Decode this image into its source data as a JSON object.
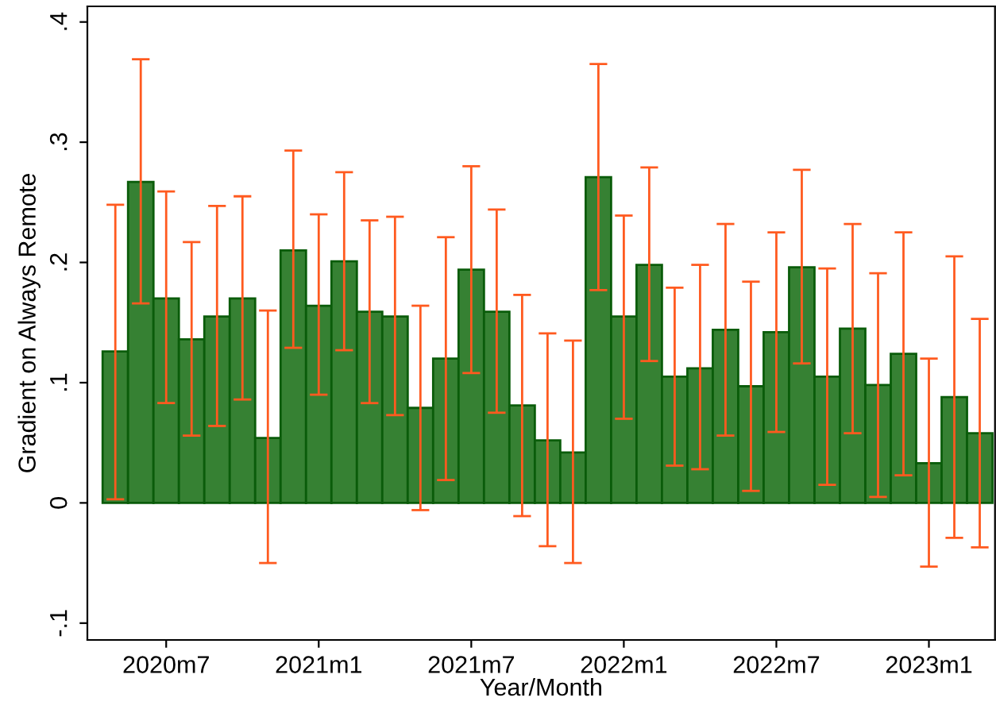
{
  "chart_data": {
    "type": "bar",
    "xlabel": "Year/Month",
    "ylabel": "Gradient on Always Remote",
    "categories": [
      null,
      null,
      "2020m7",
      null,
      null,
      null,
      null,
      null,
      "2021m1",
      null,
      null,
      null,
      null,
      null,
      "2021m7",
      null,
      null,
      null,
      null,
      null,
      "2022m1",
      null,
      null,
      null,
      null,
      null,
      "2022m7",
      null,
      null,
      null,
      null,
      null,
      "2023m1",
      null,
      null
    ],
    "values": [
      0.126,
      0.267,
      0.17,
      0.136,
      0.155,
      0.17,
      0.054,
      0.21,
      0.164,
      0.201,
      0.159,
      0.155,
      0.079,
      0.12,
      0.194,
      0.159,
      0.081,
      0.052,
      0.042,
      0.271,
      0.155,
      0.198,
      0.105,
      0.112,
      0.144,
      0.097,
      0.142,
      0.196,
      0.105,
      0.145,
      0.098,
      0.124,
      0.033,
      0.088,
      0.058
    ],
    "errors": [
      [
        0.003,
        0.248
      ],
      [
        0.166,
        0.369
      ],
      [
        0.083,
        0.259
      ],
      [
        0.056,
        0.217
      ],
      [
        0.064,
        0.247
      ],
      [
        0.086,
        0.255
      ],
      [
        -0.05,
        0.16
      ],
      [
        0.129,
        0.293
      ],
      [
        0.09,
        0.24
      ],
      [
        0.127,
        0.275
      ],
      [
        0.083,
        0.235
      ],
      [
        0.073,
        0.238
      ],
      [
        -0.006,
        0.164
      ],
      [
        0.019,
        0.221
      ],
      [
        0.108,
        0.28
      ],
      [
        0.075,
        0.244
      ],
      [
        -0.011,
        0.173
      ],
      [
        -0.036,
        0.141
      ],
      [
        -0.05,
        0.135
      ],
      [
        0.177,
        0.365
      ],
      [
        0.07,
        0.239
      ],
      [
        0.118,
        0.279
      ],
      [
        0.031,
        0.179
      ],
      [
        0.028,
        0.198
      ],
      [
        0.056,
        0.232
      ],
      [
        0.01,
        0.184
      ],
      [
        0.059,
        0.225
      ],
      [
        0.116,
        0.277
      ],
      [
        0.015,
        0.195
      ],
      [
        0.058,
        0.232
      ],
      [
        0.005,
        0.191
      ],
      [
        0.023,
        0.225
      ],
      [
        -0.053,
        0.12
      ],
      [
        -0.029,
        0.205
      ],
      [
        -0.037,
        0.153
      ]
    ],
    "color": "#368133",
    "ylim": [
      -0.114,
      0.413
    ],
    "yticks": [
      {
        "value": -0.1,
        "label": "-.1"
      },
      0,
      {
        "value": 0.1,
        "label": ".1"
      },
      {
        "value": 0.2,
        "label": ".2"
      },
      {
        "value": 0.3,
        "label": ".3"
      },
      {
        "value": 0.4,
        "label": ".4"
      }
    ],
    "grid": false,
    "legend": false
  }
}
